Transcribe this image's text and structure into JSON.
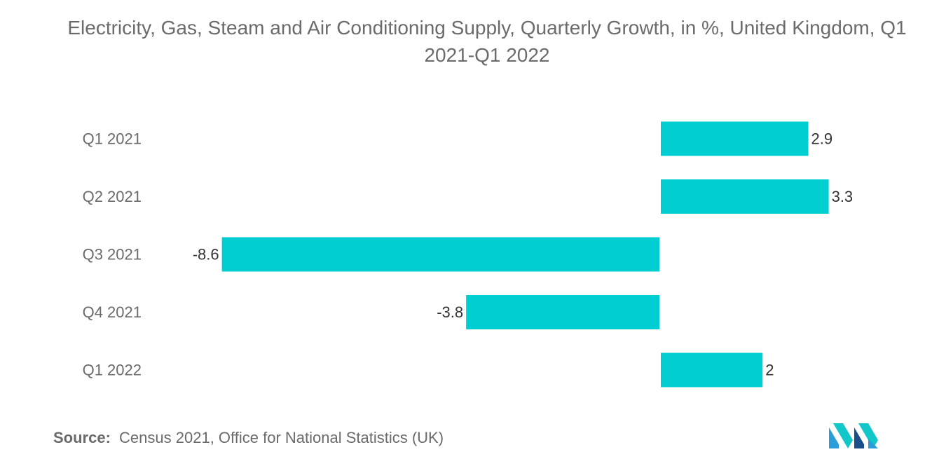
{
  "title": "Electricity, Gas, Steam and Air Conditioning Supply, Quarterly Growth, in %, United Kingdom, Q1 2021-Q1 2022",
  "source": {
    "label": "Source:",
    "text": "Census 2021, Office for National Statistics (UK)"
  },
  "logo": {
    "name": "mordor-intelligence-logo",
    "colors": [
      "#2b9ed9",
      "#12c7c9",
      "#1b4f8a"
    ]
  },
  "colors": {
    "bar": "#00ced1",
    "text": "#6b6b6b"
  },
  "chart_data": {
    "type": "bar",
    "orientation": "horizontal",
    "title": "Electricity, Gas, Steam and Air Conditioning Supply, Quarterly Growth, in %, United Kingdom, Q1 2021-Q1 2022",
    "categories": [
      "Q1 2021",
      "Q2 2021",
      "Q3 2021",
      "Q4 2021",
      "Q1 2022"
    ],
    "values": [
      2.9,
      3.3,
      -8.6,
      -3.8,
      2
    ],
    "value_labels": [
      "2.9",
      "3.3",
      "-8.6",
      "-3.8",
      "2"
    ],
    "xlabel": "",
    "ylabel": "",
    "grid": false,
    "legend": "none"
  }
}
